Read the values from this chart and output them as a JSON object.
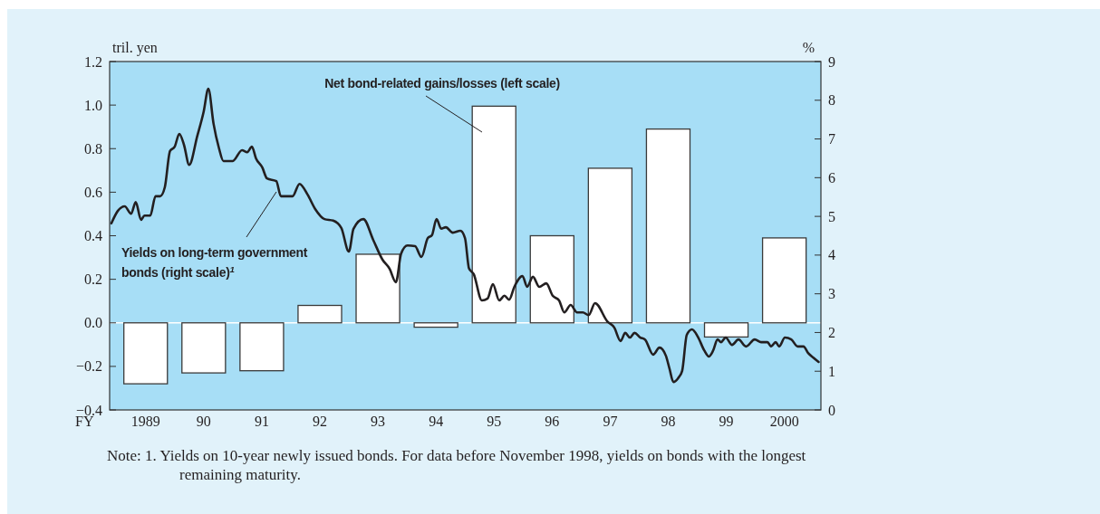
{
  "chart_data": {
    "type": "bar",
    "xlabel": "FY",
    "ylabel": "tril. yen",
    "y2label": "%",
    "xlim": [
      1988.38,
      2000.63
    ],
    "xticks": [
      1989,
      {
        "value": 1990,
        "label": "90"
      },
      {
        "value": 1991,
        "label": "91"
      },
      {
        "value": 1992,
        "label": "92"
      },
      {
        "value": 1993,
        "label": "93"
      },
      {
        "value": 1994,
        "label": "94"
      },
      {
        "value": 1995,
        "label": "95"
      },
      {
        "value": 1996,
        "label": "96"
      },
      {
        "value": 1997,
        "label": "97"
      },
      {
        "value": 1998,
        "label": "98"
      },
      {
        "value": 1999,
        "label": "99"
      },
      2000
    ],
    "ylim": [
      -0.4,
      1.2
    ],
    "yticks": [
      {
        "value": -0.4,
        "label": "−0.4"
      },
      {
        "value": -0.2,
        "label": "−0.2"
      },
      {
        "value": 0,
        "label": "0.0"
      },
      {
        "value": 0.2,
        "label": "0.2"
      },
      {
        "value": 0.4,
        "label": "0.4"
      },
      {
        "value": 0.6,
        "label": "0.6"
      },
      {
        "value": 0.8,
        "label": "0.8"
      },
      {
        "value": 1.0,
        "label": "1.0"
      },
      {
        "value": 1.2,
        "label": "1.2"
      }
    ],
    "y2lim": [
      0,
      9
    ],
    "y2ticks": [
      0,
      1,
      2,
      3,
      4,
      5,
      6,
      7,
      8,
      9
    ],
    "ref_lines": [
      {
        "axis": "y",
        "value": 0,
        "color": "#ffffff"
      }
    ],
    "series": [
      {
        "name": "Net bond-related gains/losses (left scale)",
        "color": "#ffffff",
        "x": [
          1989,
          1990,
          1991,
          1992,
          1993,
          1994,
          1995,
          1996,
          1997,
          1998,
          1999,
          2000
        ],
        "values": [
          -0.28,
          -0.23,
          -0.22,
          0.08,
          0.315,
          -0.02,
          0.995,
          0.4,
          0.71,
          0.89,
          -0.065,
          0.39
        ]
      },
      {
        "name": "Yields on long-term government bonds (right scale)$^{1}$",
        "type": "line",
        "axis": "y2",
        "color": "#231f20",
        "x": [
          1988.41,
          1988.52,
          1988.64,
          1988.75,
          1988.83,
          1988.92,
          1988.98,
          1989.08,
          1989.17,
          1989.25,
          1989.33,
          1989.42,
          1989.5,
          1989.58,
          1989.66,
          1989.75,
          1989.89,
          1990.0,
          1990.08,
          1990.17,
          1990.26,
          1990.34,
          1990.5,
          1990.66,
          1990.75,
          1990.83,
          1990.9,
          1991.01,
          1991.09,
          1991.25,
          1991.33,
          1991.53,
          1991.65,
          1991.79,
          1991.92,
          1992.08,
          1992.23,
          1992.37,
          1992.5,
          1992.58,
          1992.75,
          1992.92,
          1993.08,
          1993.2,
          1993.31,
          1993.4,
          1993.51,
          1993.64,
          1993.75,
          1993.86,
          1993.93,
          1994.01,
          1994.09,
          1994.17,
          1994.29,
          1994.42,
          1994.5,
          1994.57,
          1994.65,
          1994.79,
          1994.89,
          1994.98,
          1995.09,
          1995.18,
          1995.26,
          1995.35,
          1995.49,
          1995.57,
          1995.67,
          1995.78,
          1995.9,
          1996.01,
          1996.12,
          1996.21,
          1996.32,
          1996.43,
          1996.53,
          1996.63,
          1996.74,
          1996.95,
          1997.07,
          1997.18,
          1997.26,
          1997.34,
          1997.42,
          1997.52,
          1997.6,
          1997.74,
          1997.85,
          1997.96,
          1998.02,
          1998.09,
          1998.17,
          1998.24,
          1998.32,
          1998.41,
          1998.51,
          1998.62,
          1998.7,
          1998.77,
          1998.85,
          1998.91,
          1998.99,
          1999.1,
          1999.21,
          1999.34,
          1999.49,
          1999.6,
          1999.71,
          1999.77,
          1999.85,
          1999.91,
          2000.01,
          2000.12,
          2000.23,
          2000.33,
          2000.41,
          2000.49,
          2000.59
        ],
        "values": [
          4.82,
          5.14,
          5.26,
          5.07,
          5.37,
          4.91,
          5.02,
          5.02,
          5.52,
          5.52,
          5.75,
          6.69,
          6.8,
          7.13,
          6.85,
          6.33,
          7.08,
          7.71,
          8.3,
          7.39,
          6.78,
          6.43,
          6.43,
          6.71,
          6.66,
          6.8,
          6.5,
          6.26,
          5.98,
          5.91,
          5.52,
          5.52,
          5.84,
          5.56,
          5.19,
          4.93,
          4.89,
          4.7,
          4.09,
          4.68,
          4.93,
          4.39,
          3.88,
          3.65,
          3.3,
          4.04,
          4.25,
          4.23,
          3.95,
          4.44,
          4.51,
          4.93,
          4.68,
          4.72,
          4.58,
          4.63,
          4.44,
          3.65,
          3.51,
          2.83,
          2.88,
          3.25,
          2.83,
          2.95,
          2.85,
          3.18,
          3.46,
          3.18,
          3.44,
          3.18,
          3.27,
          2.95,
          2.83,
          2.52,
          2.71,
          2.52,
          2.52,
          2.45,
          2.76,
          2.29,
          2.13,
          1.78,
          1.99,
          1.87,
          1.99,
          1.87,
          1.82,
          1.43,
          1.61,
          1.4,
          1.08,
          0.72,
          0.82,
          1.01,
          1.94,
          2.08,
          1.89,
          1.54,
          1.38,
          1.52,
          1.82,
          1.75,
          1.87,
          1.68,
          1.82,
          1.64,
          1.82,
          1.75,
          1.75,
          1.64,
          1.75,
          1.64,
          1.87,
          1.82,
          1.64,
          1.64,
          1.47,
          1.36,
          1.24
        ]
      }
    ],
    "annotations": [
      "Note: 1. Yields on 10-year newly issued bonds. For data before November 1998, yields on bonds with the longest remaining maturity."
    ]
  }
}
